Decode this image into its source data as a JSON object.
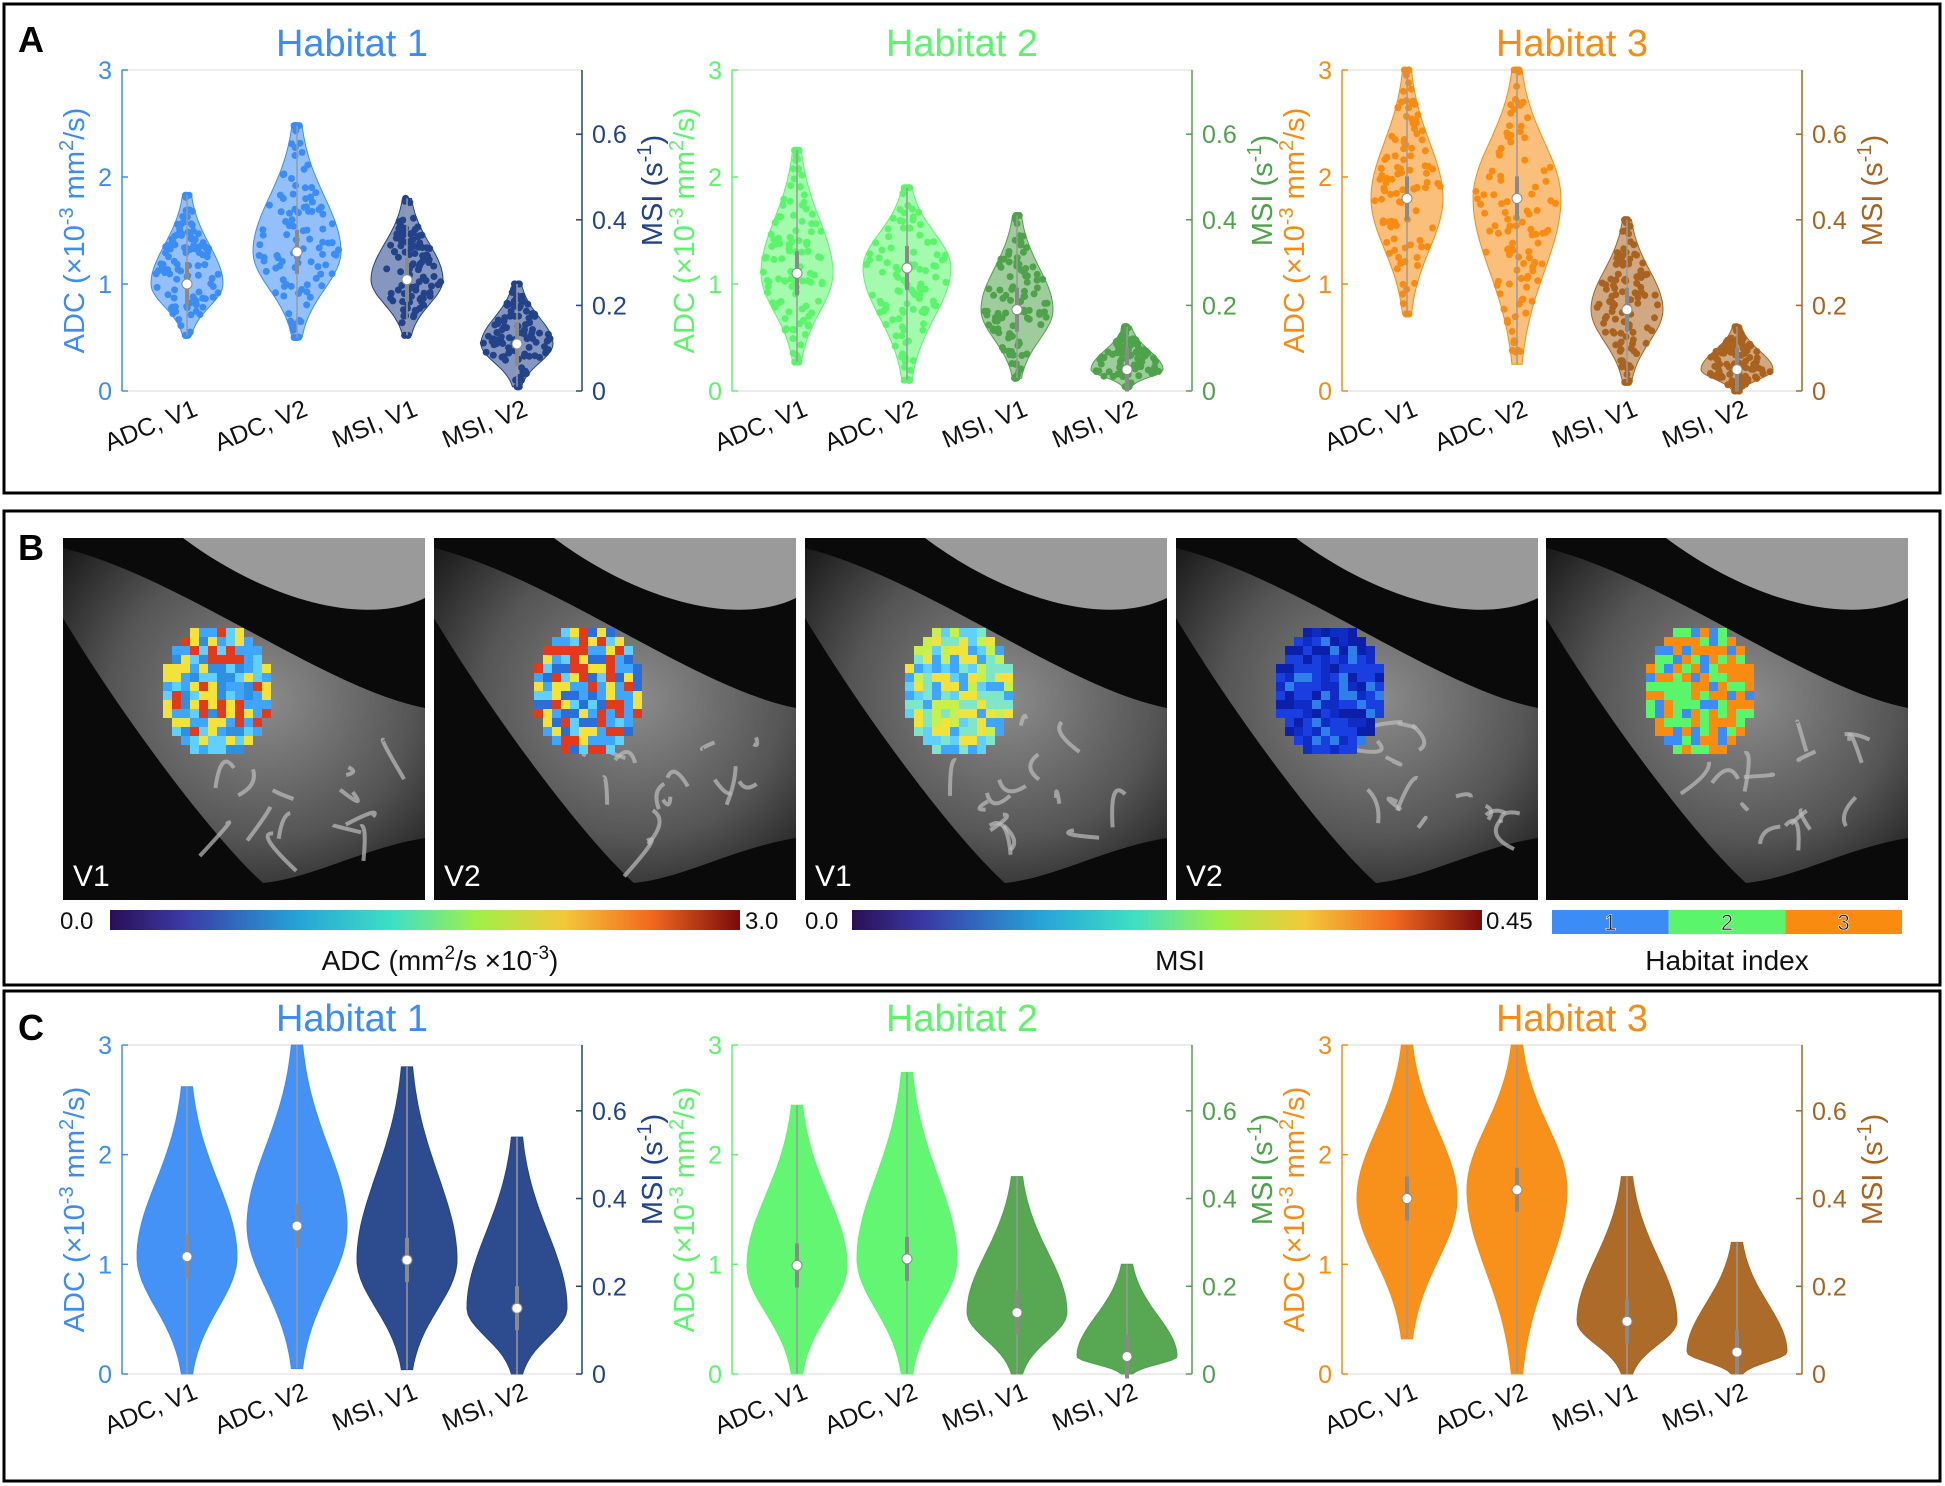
{
  "panels": {
    "A": {
      "letter": "A"
    },
    "B": {
      "letter": "B"
    },
    "C": {
      "letter": "C"
    }
  },
  "colors": {
    "h1": "#3b8cf5",
    "h1_dark": "#22428a",
    "h2": "#5af56a",
    "h2_dark": "#4ea24a",
    "h3": "#f88b10",
    "h3_dark": "#a9631e",
    "frame": "#000000"
  },
  "axis_text": {
    "adc_prefix": "ADC (",
    "adc_times": "×10",
    "adc_exp": "-3",
    "adc_unit": " mm",
    "adc_sq": "2",
    "adc_suffix": "/s)",
    "msi_prefix": "MSI (s",
    "msi_exp": "-1",
    "msi_suffix": ")"
  },
  "chart_data": [
    {
      "type": "violin",
      "panel": "A",
      "title": "Habitat 1",
      "categories": [
        "ADC, V1",
        "ADC, V2",
        "MSI, V1",
        "MSI, V2"
      ],
      "ylim_left": [
        0,
        3
      ],
      "yticks_left": [
        "0",
        "1",
        "2",
        "3"
      ],
      "ylim_right": [
        0,
        0.75
      ],
      "yticks_right": [
        "0",
        "0.2",
        "0.4",
        "0.6"
      ],
      "series": [
        {
          "medians": [
            1.0,
            1.3
          ],
          "ranges": [
            [
              0.52,
              1.83
            ],
            [
              0.5,
              2.48
            ]
          ]
        },
        {
          "medians": [
            0.26,
            0.11
          ],
          "ranges": [
            [
              0.13,
              0.45
            ],
            [
              0.01,
              0.25
            ]
          ]
        }
      ]
    },
    {
      "type": "violin",
      "panel": "A",
      "title": "Habitat 2",
      "categories": [
        "ADC, V1",
        "ADC, V2",
        "MSI, V1",
        "MSI, V2"
      ],
      "ylim_left": [
        0,
        3
      ],
      "yticks_left": [
        "0",
        "1",
        "2",
        "3"
      ],
      "ylim_right": [
        0,
        0.75
      ],
      "yticks_right": [
        "0",
        "0.2",
        "0.4",
        "0.6"
      ],
      "series": [
        {
          "medians": [
            1.1,
            1.15
          ],
          "ranges": [
            [
              0.27,
              2.25
            ],
            [
              0.1,
              1.9
            ]
          ]
        },
        {
          "medians": [
            0.19,
            0.05
          ],
          "ranges": [
            [
              0.03,
              0.41
            ],
            [
              0.01,
              0.15
            ]
          ]
        }
      ]
    },
    {
      "type": "violin",
      "panel": "A",
      "title": "Habitat 3",
      "categories": [
        "ADC, V1",
        "ADC, V2",
        "MSI, V1",
        "MSI, V2"
      ],
      "ylim_left": [
        0,
        3
      ],
      "yticks_left": [
        "0",
        "1",
        "2",
        "3"
      ],
      "ylim_right": [
        0,
        0.75
      ],
      "yticks_right": [
        "0",
        "0.2",
        "0.4",
        "0.6"
      ],
      "series": [
        {
          "medians": [
            1.8,
            1.8
          ],
          "ranges": [
            [
              0.72,
              3.0
            ],
            [
              0.25,
              3.0
            ]
          ]
        },
        {
          "medians": [
            0.19,
            0.05
          ],
          "ranges": [
            [
              0.02,
              0.4
            ],
            [
              0.0,
              0.15
            ]
          ]
        }
      ]
    },
    {
      "type": "violin",
      "panel": "C",
      "title": "Habitat 1",
      "categories": [
        "ADC, V1",
        "ADC, V2",
        "MSI, V1",
        "MSI, V2"
      ],
      "ylim_left": [
        0,
        3
      ],
      "yticks_left": [
        "0",
        "1",
        "2",
        "3"
      ],
      "ylim_right": [
        0,
        0.75
      ],
      "yticks_right": [
        "0",
        "0.2",
        "0.4",
        "0.6"
      ],
      "series": [
        {
          "medians": [
            1.07,
            1.35
          ],
          "ranges": [
            [
              0.0,
              2.62
            ],
            [
              0.05,
              3.0
            ]
          ]
        },
        {
          "medians": [
            0.26,
            0.15
          ],
          "ranges": [
            [
              0.01,
              0.7
            ],
            [
              0.0,
              0.54
            ]
          ]
        }
      ]
    },
    {
      "type": "violin",
      "panel": "C",
      "title": "Habitat 2",
      "categories": [
        "ADC, V1",
        "ADC, V2",
        "MSI, V1",
        "MSI, V2"
      ],
      "ylim_left": [
        0,
        3
      ],
      "yticks_left": [
        "0",
        "1",
        "2",
        "3"
      ],
      "ylim_right": [
        0,
        0.75
      ],
      "yticks_right": [
        "0",
        "0.2",
        "0.4",
        "0.6"
      ],
      "series": [
        {
          "medians": [
            0.99,
            1.05
          ],
          "ranges": [
            [
              0.0,
              2.45
            ],
            [
              0.0,
              2.75
            ]
          ]
        },
        {
          "medians": [
            0.14,
            0.04
          ],
          "ranges": [
            [
              0.0,
              0.45
            ],
            [
              0.0,
              0.25
            ]
          ]
        }
      ]
    },
    {
      "type": "violin",
      "panel": "C",
      "title": "Habitat 3",
      "categories": [
        "ADC, V1",
        "ADC, V2",
        "MSI, V1",
        "MSI, V2"
      ],
      "ylim_left": [
        0,
        3
      ],
      "yticks_left": [
        "0",
        "1",
        "2",
        "3"
      ],
      "ylim_right": [
        0,
        0.75
      ],
      "yticks_right": [
        "0",
        "0.2",
        "0.4",
        "0.6"
      ],
      "series": [
        {
          "medians": [
            1.6,
            1.68
          ],
          "ranges": [
            [
              0.32,
              3.0
            ],
            [
              0.0,
              3.0
            ]
          ]
        },
        {
          "medians": [
            0.12,
            0.05
          ],
          "ranges": [
            [
              0.0,
              0.45
            ],
            [
              0.0,
              0.3
            ]
          ]
        }
      ]
    }
  ],
  "mri": {
    "labels": [
      "V1",
      "V2",
      "V1",
      "V2",
      ""
    ]
  },
  "colorbars": {
    "adc": {
      "min": "0.0",
      "max": "3.0",
      "title_prefix": "ADC (mm",
      "title_sq": "2",
      "title_mid": "/s ×10",
      "title_exp": "-3",
      "title_suffix": ")"
    },
    "msi": {
      "min": "0.0",
      "max": "0.45",
      "title": "MSI"
    },
    "habitat": {
      "ticks": [
        "1",
        "2",
        "3"
      ],
      "title": "Habitat index"
    }
  }
}
